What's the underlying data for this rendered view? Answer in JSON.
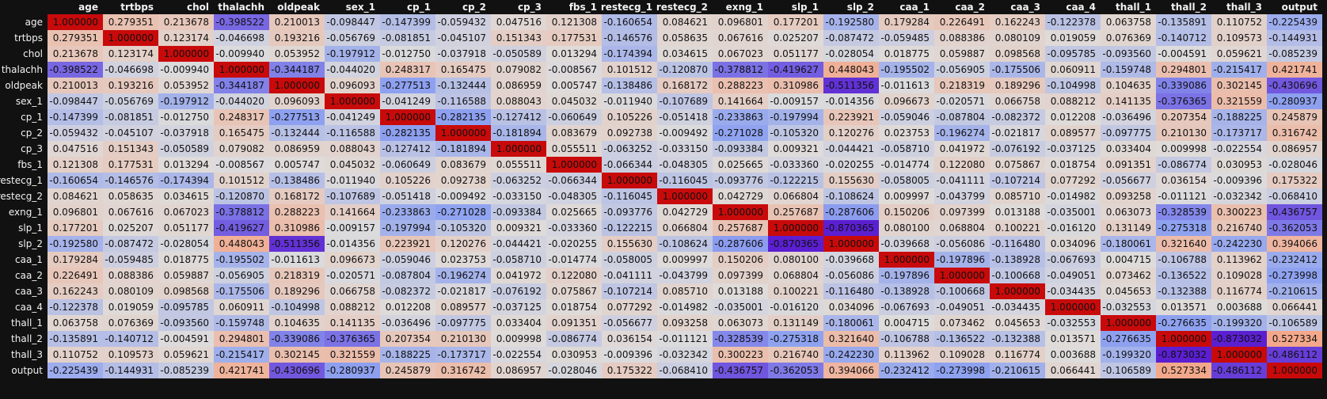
{
  "chart_data": {
    "type": "heatmap",
    "title": "",
    "xlabel": "",
    "ylabel": "",
    "columns": [
      "age",
      "trtbps",
      "chol",
      "thalachh",
      "oldpeak",
      "sex_1",
      "cp_1",
      "cp_2",
      "cp_3",
      "fbs_1",
      "restecg_1",
      "restecg_2",
      "exng_1",
      "slp_1",
      "slp_2",
      "caa_1",
      "caa_2",
      "caa_3",
      "caa_4",
      "thall_1",
      "thall_2",
      "thall_3",
      "output"
    ],
    "rows": [
      "age",
      "trtbps",
      "chol",
      "thalachh",
      "oldpeak",
      "sex_1",
      "cp_1",
      "cp_2",
      "cp_3",
      "fbs_1",
      "restecg_1",
      "restecg_2",
      "exng_1",
      "slp_1",
      "slp_2",
      "caa_1",
      "caa_2",
      "caa_3",
      "caa_4",
      "thall_1",
      "thall_2",
      "thall_3",
      "output"
    ],
    "values": [
      [
        "1.000000",
        "0.279351",
        "0.213678",
        "-0.398522",
        "0.210013",
        "-0.098447",
        "-0.147399",
        "-0.059432",
        "0.047516",
        "0.121308",
        "-0.160654",
        "0.084621",
        "0.096801",
        "0.177201",
        "-0.192580",
        "0.179284",
        "0.226491",
        "0.162243",
        "-0.122378",
        "0.063758",
        "-0.135891",
        "0.110752",
        "-0.225439"
      ],
      [
        "0.279351",
        "1.000000",
        "0.123174",
        "-0.046698",
        "0.193216",
        "-0.056769",
        "-0.081851",
        "-0.045107",
        "0.151343",
        "0.177531",
        "-0.146576",
        "0.058635",
        "0.067616",
        "0.025207",
        "-0.087472",
        "-0.059485",
        "0.088386",
        "0.080109",
        "0.019059",
        "0.076369",
        "-0.140712",
        "0.109573",
        "-0.144931"
      ],
      [
        "0.213678",
        "0.123174",
        "1.000000",
        "-0.009940",
        "0.053952",
        "-0.197912",
        "-0.012750",
        "-0.037918",
        "-0.050589",
        "0.013294",
        "-0.174394",
        "0.034615",
        "0.067023",
        "0.051177",
        "-0.028054",
        "0.018775",
        "0.059887",
        "0.098568",
        "-0.095785",
        "-0.093560",
        "-0.004591",
        "0.059621",
        "-0.085239"
      ],
      [
        "-0.398522",
        "-0.046698",
        "-0.009940",
        "1.000000",
        "-0.344187",
        "-0.044020",
        "0.248317",
        "0.165475",
        "0.079082",
        "-0.008567",
        "0.101512",
        "-0.120870",
        "-0.378812",
        "-0.419627",
        "0.448043",
        "-0.195502",
        "-0.056905",
        "-0.175506",
        "0.060911",
        "-0.159748",
        "0.294801",
        "-0.215417",
        "0.421741"
      ],
      [
        "0.210013",
        "0.193216",
        "0.053952",
        "-0.344187",
        "1.000000",
        "0.096093",
        "-0.277513",
        "-0.132444",
        "0.086959",
        "0.005747",
        "-0.138486",
        "0.168172",
        "0.288223",
        "0.310986",
        "-0.511356",
        "-0.011613",
        "0.218319",
        "0.189296",
        "-0.104998",
        "0.104635",
        "-0.339086",
        "0.302145",
        "-0.430696"
      ],
      [
        "-0.098447",
        "-0.056769",
        "-0.197912",
        "-0.044020",
        "0.096093",
        "1.000000",
        "-0.041249",
        "-0.116588",
        "0.088043",
        "0.045032",
        "-0.011940",
        "-0.107689",
        "0.141664",
        "-0.009157",
        "-0.014356",
        "0.096673",
        "-0.020571",
        "0.066758",
        "0.088212",
        "0.141135",
        "-0.376365",
        "0.321559",
        "-0.280937"
      ],
      [
        "-0.147399",
        "-0.081851",
        "-0.012750",
        "0.248317",
        "-0.277513",
        "-0.041249",
        "1.000000",
        "-0.282135",
        "-0.127412",
        "-0.060649",
        "0.105226",
        "-0.051418",
        "-0.233863",
        "-0.197994",
        "0.223921",
        "-0.059046",
        "-0.087804",
        "-0.082372",
        "0.012208",
        "-0.036496",
        "0.207354",
        "-0.188225",
        "0.245879"
      ],
      [
        "-0.059432",
        "-0.045107",
        "-0.037918",
        "0.165475",
        "-0.132444",
        "-0.116588",
        "-0.282135",
        "1.000000",
        "-0.181894",
        "0.083679",
        "0.092738",
        "-0.009492",
        "-0.271028",
        "-0.105320",
        "0.120276",
        "0.023753",
        "-0.196274",
        "-0.021817",
        "0.089577",
        "-0.097775",
        "0.210130",
        "-0.173717",
        "0.316742"
      ],
      [
        "0.047516",
        "0.151343",
        "-0.050589",
        "0.079082",
        "0.086959",
        "0.088043",
        "-0.127412",
        "-0.181894",
        "1.000000",
        "0.055511",
        "-0.063252",
        "-0.033150",
        "-0.093384",
        "0.009321",
        "-0.044421",
        "-0.058710",
        "0.041972",
        "-0.076192",
        "-0.037125",
        "0.033404",
        "0.009998",
        "-0.022554",
        "0.086957"
      ],
      [
        "0.121308",
        "0.177531",
        "0.013294",
        "-0.008567",
        "0.005747",
        "0.045032",
        "-0.060649",
        "0.083679",
        "0.055511",
        "1.000000",
        "-0.066344",
        "-0.048305",
        "0.025665",
        "-0.033360",
        "-0.020255",
        "-0.014774",
        "0.122080",
        "0.075867",
        "0.018754",
        "0.091351",
        "-0.086774",
        "0.030953",
        "-0.028046"
      ],
      [
        "-0.160654",
        "-0.146576",
        "-0.174394",
        "0.101512",
        "-0.138486",
        "-0.011940",
        "0.105226",
        "0.092738",
        "-0.063252",
        "-0.066344",
        "1.000000",
        "-0.116045",
        "-0.093776",
        "-0.122215",
        "0.155630",
        "-0.058005",
        "-0.041111",
        "-0.107214",
        "0.077292",
        "-0.056677",
        "0.036154",
        "-0.009396",
        "0.175322"
      ],
      [
        "0.084621",
        "0.058635",
        "0.034615",
        "-0.120870",
        "0.168172",
        "-0.107689",
        "-0.051418",
        "-0.009492",
        "-0.033150",
        "-0.048305",
        "-0.116045",
        "1.000000",
        "0.042729",
        "0.066804",
        "-0.108624",
        "0.009997",
        "-0.043799",
        "0.085710",
        "-0.014982",
        "0.093258",
        "-0.011121",
        "-0.032342",
        "-0.068410"
      ],
      [
        "0.096801",
        "0.067616",
        "0.067023",
        "-0.378812",
        "0.288223",
        "0.141664",
        "-0.233863",
        "-0.271028",
        "-0.093384",
        "0.025665",
        "-0.093776",
        "0.042729",
        "1.000000",
        "0.257687",
        "-0.287606",
        "0.150206",
        "0.097399",
        "0.013188",
        "-0.035001",
        "0.063073",
        "-0.328539",
        "0.300223",
        "-0.436757"
      ],
      [
        "0.177201",
        "0.025207",
        "0.051177",
        "-0.419627",
        "0.310986",
        "-0.009157",
        "-0.197994",
        "-0.105320",
        "0.009321",
        "-0.033360",
        "-0.122215",
        "0.066804",
        "0.257687",
        "1.000000",
        "-0.870365",
        "0.080100",
        "0.068804",
        "0.100221",
        "-0.016120",
        "0.131149",
        "-0.275318",
        "0.216740",
        "-0.362053"
      ],
      [
        "-0.192580",
        "-0.087472",
        "-0.028054",
        "0.448043",
        "-0.511356",
        "-0.014356",
        "0.223921",
        "0.120276",
        "-0.044421",
        "-0.020255",
        "0.155630",
        "-0.108624",
        "-0.287606",
        "-0.870365",
        "1.000000",
        "-0.039668",
        "-0.056086",
        "-0.116480",
        "0.034096",
        "-0.180061",
        "0.321640",
        "-0.242230",
        "0.394066"
      ],
      [
        "0.179284",
        "-0.059485",
        "0.018775",
        "-0.195502",
        "-0.011613",
        "0.096673",
        "-0.059046",
        "0.023753",
        "-0.058710",
        "-0.014774",
        "-0.058005",
        "0.009997",
        "0.150206",
        "0.080100",
        "-0.039668",
        "1.000000",
        "-0.197896",
        "-0.138928",
        "-0.067693",
        "0.004715",
        "-0.106788",
        "0.113962",
        "-0.232412"
      ],
      [
        "0.226491",
        "0.088386",
        "0.059887",
        "-0.056905",
        "0.218319",
        "-0.020571",
        "-0.087804",
        "-0.196274",
        "0.041972",
        "0.122080",
        "-0.041111",
        "-0.043799",
        "0.097399",
        "0.068804",
        "-0.056086",
        "-0.197896",
        "1.000000",
        "-0.100668",
        "-0.049051",
        "0.073462",
        "-0.136522",
        "0.109028",
        "-0.273998"
      ],
      [
        "0.162243",
        "0.080109",
        "0.098568",
        "-0.175506",
        "0.189296",
        "0.066758",
        "-0.082372",
        "-0.021817",
        "-0.076192",
        "0.075867",
        "-0.107214",
        "0.085710",
        "0.013188",
        "0.100221",
        "-0.116480",
        "-0.138928",
        "-0.100668",
        "1.000000",
        "-0.034435",
        "0.045653",
        "-0.132388",
        "0.116774",
        "-0.210615"
      ],
      [
        "-0.122378",
        "0.019059",
        "-0.095785",
        "0.060911",
        "-0.104998",
        "0.088212",
        "0.012208",
        "0.089577",
        "-0.037125",
        "0.018754",
        "0.077292",
        "-0.014982",
        "-0.035001",
        "-0.016120",
        "0.034096",
        "-0.067693",
        "-0.049051",
        "-0.034435",
        "1.000000",
        "-0.032553",
        "0.013571",
        "0.003688",
        "0.066441"
      ],
      [
        "0.063758",
        "0.076369",
        "-0.093560",
        "-0.159748",
        "0.104635",
        "0.141135",
        "-0.036496",
        "-0.097775",
        "0.033404",
        "0.091351",
        "-0.056677",
        "0.093258",
        "0.063073",
        "0.131149",
        "-0.180061",
        "0.004715",
        "0.073462",
        "0.045653",
        "-0.032553",
        "1.000000",
        "-0.276635",
        "-0.199320",
        "-0.106589"
      ],
      [
        "-0.135891",
        "-0.140712",
        "-0.004591",
        "0.294801",
        "-0.339086",
        "-0.376365",
        "0.207354",
        "0.210130",
        "0.009998",
        "-0.086774",
        "0.036154",
        "-0.011121",
        "-0.328539",
        "-0.275318",
        "0.321640",
        "-0.106788",
        "-0.136522",
        "-0.132388",
        "0.013571",
        "-0.276635",
        "1.000000",
        "-0.873032",
        "0.527334"
      ],
      [
        "0.110752",
        "0.109573",
        "0.059621",
        "-0.215417",
        "0.302145",
        "0.321559",
        "-0.188225",
        "-0.173717",
        "-0.022554",
        "0.030953",
        "-0.009396",
        "-0.032342",
        "0.300223",
        "0.216740",
        "-0.242230",
        "0.113962",
        "0.109028",
        "0.116774",
        "0.003688",
        "-0.199320",
        "-0.873032",
        "1.000000",
        "-0.486112"
      ],
      [
        "-0.225439",
        "-0.144931",
        "-0.085239",
        "0.421741",
        "-0.430696",
        "-0.280937",
        "0.245879",
        "0.316742",
        "0.086957",
        "-0.028046",
        "0.175322",
        "-0.068410",
        "-0.436757",
        "-0.362053",
        "0.394066",
        "-0.232412",
        "-0.273998",
        "-0.210615",
        "0.066441",
        "-0.106589",
        "0.527334",
        "-0.486112",
        "1.000000"
      ]
    ],
    "colormap": {
      "min_color": "#5b1fd1",
      "center_color": "#dedcdb",
      "max_color": "#c80a0a",
      "near_max_color": "#f4a688"
    },
    "background_color": "#111111",
    "label_color": "#f2f2f2",
    "cell_text_color": "#111111"
  }
}
